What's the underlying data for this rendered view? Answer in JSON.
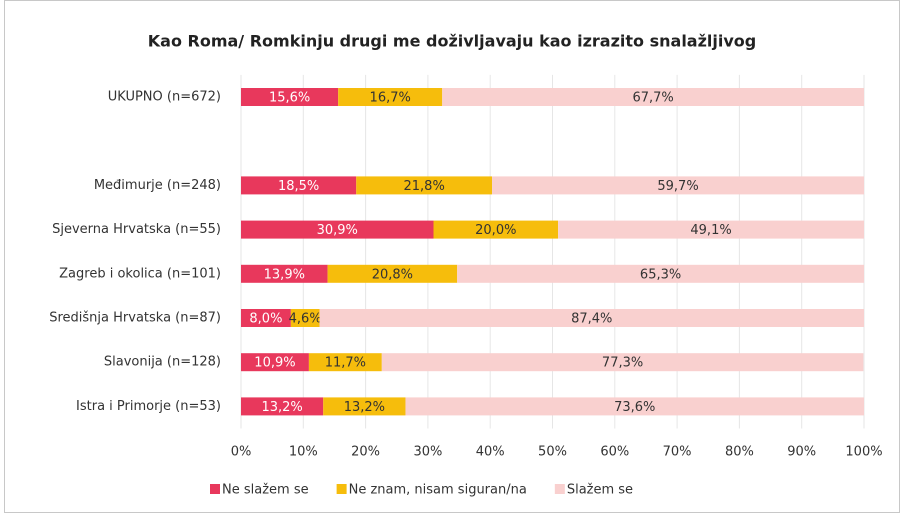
{
  "chart_data": {
    "type": "stacked-barh",
    "title": "Kao Roma/ Romkinju drugi me doživljavaju kao izrazito snalažljivog",
    "categories": [
      "UKUPNO (n=672)",
      null,
      "Međimurje (n=248)",
      "Sjeverna Hrvatska (n=55)",
      "Zagreb i okolica (n=101)",
      "Središnja Hrvatska (n=87)",
      "Slavonija (n=128)",
      "Istra i Primorje (n=53)"
    ],
    "series": [
      {
        "name": "Ne slažem se",
        "color": "#e8385c",
        "values": [
          15.6,
          null,
          18.5,
          30.9,
          13.9,
          8.0,
          10.9,
          13.2
        ],
        "value_labels": [
          "15,6%",
          null,
          "18,5%",
          "30,9%",
          "13,9%",
          "8,0%",
          "10,9%",
          "13,2%"
        ]
      },
      {
        "name": "Ne znam, nisam siguran/na",
        "color": "#f6bd0c",
        "values": [
          16.7,
          null,
          21.8,
          20.0,
          20.8,
          4.6,
          11.7,
          13.2
        ],
        "value_labels": [
          "16,7%",
          null,
          "21,8%",
          "20,0%",
          "20,8%",
          "4,6%",
          "11,7%",
          "13,2%"
        ]
      },
      {
        "name": "Slažem se",
        "color": "#f9d0cf",
        "values": [
          67.7,
          null,
          59.7,
          49.1,
          65.3,
          87.4,
          77.3,
          73.6
        ],
        "value_labels": [
          "67,7%",
          null,
          "59,7%",
          "49,1%",
          "65,3%",
          "87,4%",
          "77,3%",
          "73,6%"
        ]
      }
    ],
    "xlim": [
      0,
      100
    ],
    "xticks": [
      {
        "value": 0,
        "label": "0%"
      },
      {
        "value": 10,
        "label": "10%"
      },
      {
        "value": 20,
        "label": "20%"
      },
      {
        "value": 30,
        "label": "30%"
      },
      {
        "value": 40,
        "label": "40%"
      },
      {
        "value": 50,
        "label": "50%"
      },
      {
        "value": 60,
        "label": "60%"
      },
      {
        "value": 70,
        "label": "70%"
      },
      {
        "value": 80,
        "label": "80%"
      },
      {
        "value": 90,
        "label": "90%"
      },
      {
        "value": 100,
        "label": "100%"
      }
    ],
    "grid": true,
    "legend": "bottom"
  }
}
